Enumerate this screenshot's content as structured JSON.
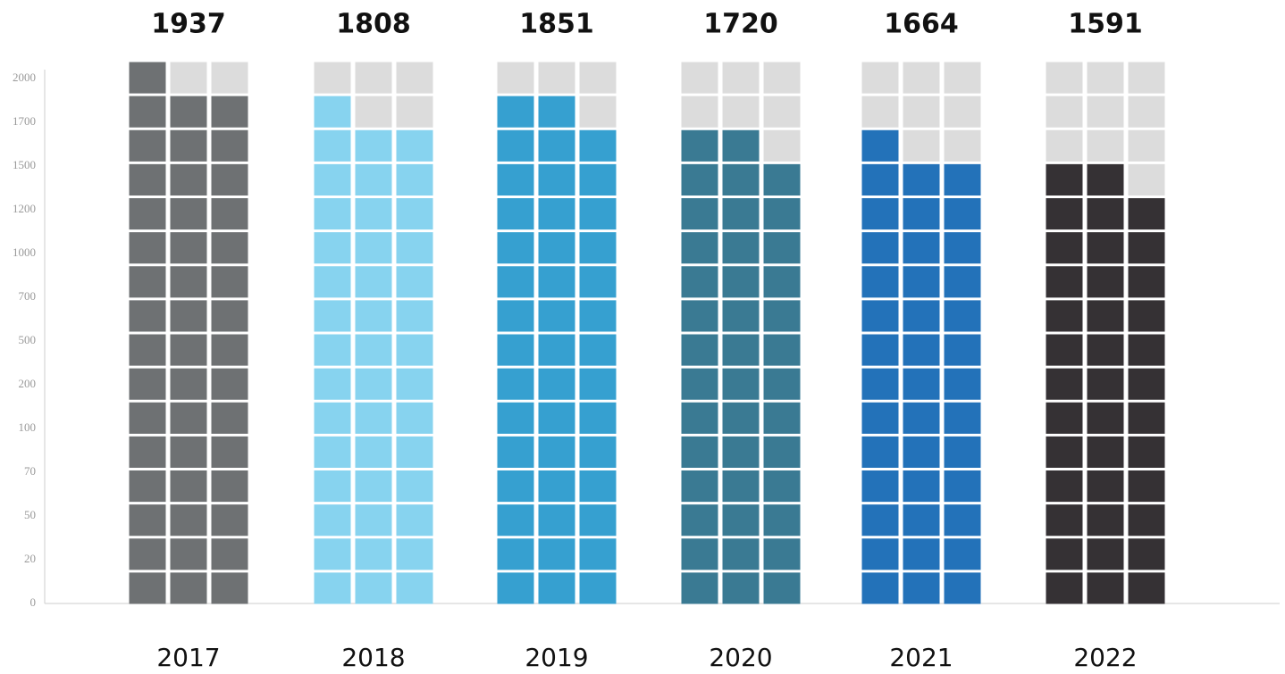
{
  "chart_data": {
    "type": "waffle-bar",
    "categories": [
      "2017",
      "2018",
      "2019",
      "2020",
      "2021",
      "2022"
    ],
    "values": [
      1937,
      1808,
      1851,
      1720,
      1664,
      1591
    ],
    "colors": [
      "#6e7173",
      "#87d3ef",
      "#36a0d0",
      "#3a7a93",
      "#2372b9",
      "#353134"
    ],
    "empty_color": "#dcdcdc",
    "ylim": [
      0,
      2000
    ],
    "yticks": [
      0,
      20,
      50,
      70,
      100,
      200,
      500,
      700,
      1000,
      1200,
      1500,
      1700,
      2000
    ]
  }
}
